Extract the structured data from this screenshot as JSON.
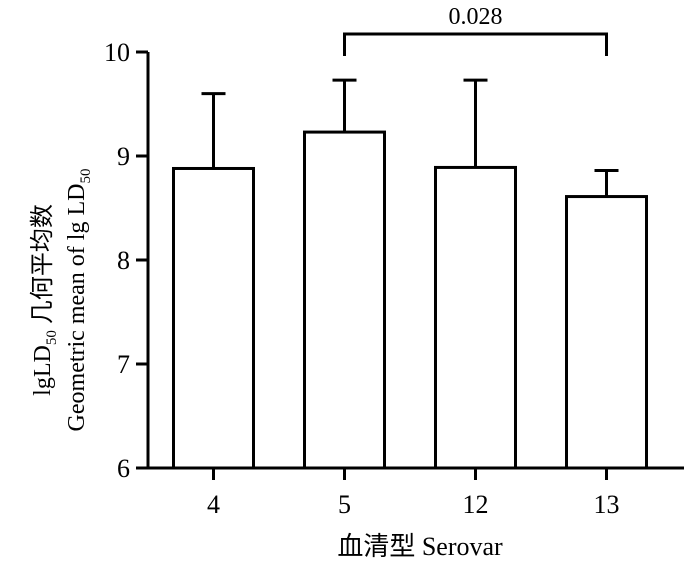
{
  "chart_data": {
    "type": "bar",
    "categories": [
      "4",
      "5",
      "12",
      "13"
    ],
    "values": [
      8.88,
      9.23,
      8.89,
      8.61
    ],
    "error_upper": [
      9.6,
      9.73,
      9.73,
      8.86
    ],
    "ylim": [
      6,
      10
    ],
    "yticks": [
      "6",
      "7",
      "8",
      "9",
      "10"
    ],
    "ylabel_line1": "lgLD",
    "ylabel_line1_sub": "50",
    "ylabel_line1_cn": " 几何平均数",
    "ylabel_line2": "Geometric mean of lg LD",
    "ylabel_line2_sub": "50",
    "xlabel": "血清型  Serovar",
    "significance": {
      "from": "5",
      "to": "13",
      "label": "0.028"
    },
    "grid": false,
    "legend": "none"
  }
}
